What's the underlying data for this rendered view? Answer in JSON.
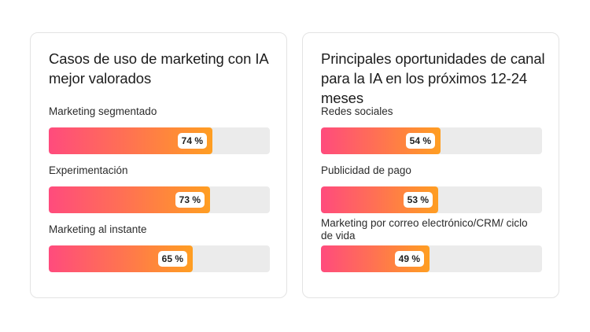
{
  "chart_data": [
    {
      "type": "bar",
      "title": "Casos de uso de marketing con IA mejor valorados",
      "categories": [
        "Marketing segmentado",
        "Experimentación",
        "Marketing al instante"
      ],
      "values": [
        74,
        73,
        65
      ],
      "value_labels": [
        "74 %",
        "73 %",
        "65 %"
      ],
      "xlim": [
        0,
        100
      ],
      "orientation": "horizontal",
      "colors": {
        "gradient_start": "#ff4b7d",
        "gradient_end": "#ff9e22",
        "track": "#ebebeb"
      }
    },
    {
      "type": "bar",
      "title": "Principales oportunidades de canal para la IA en los próximos 12-24 meses",
      "categories": [
        "Redes sociales",
        "Publicidad de pago",
        "Marketing por correo electrónico/CRM/ ciclo de vida"
      ],
      "values": [
        54,
        53,
        49
      ],
      "value_labels": [
        "54 %",
        "53 %",
        "49 %"
      ],
      "xlim": [
        0,
        100
      ],
      "orientation": "horizontal",
      "colors": {
        "gradient_start": "#ff4b7d",
        "gradient_end": "#ff9e22",
        "track": "#ebebeb"
      }
    }
  ]
}
